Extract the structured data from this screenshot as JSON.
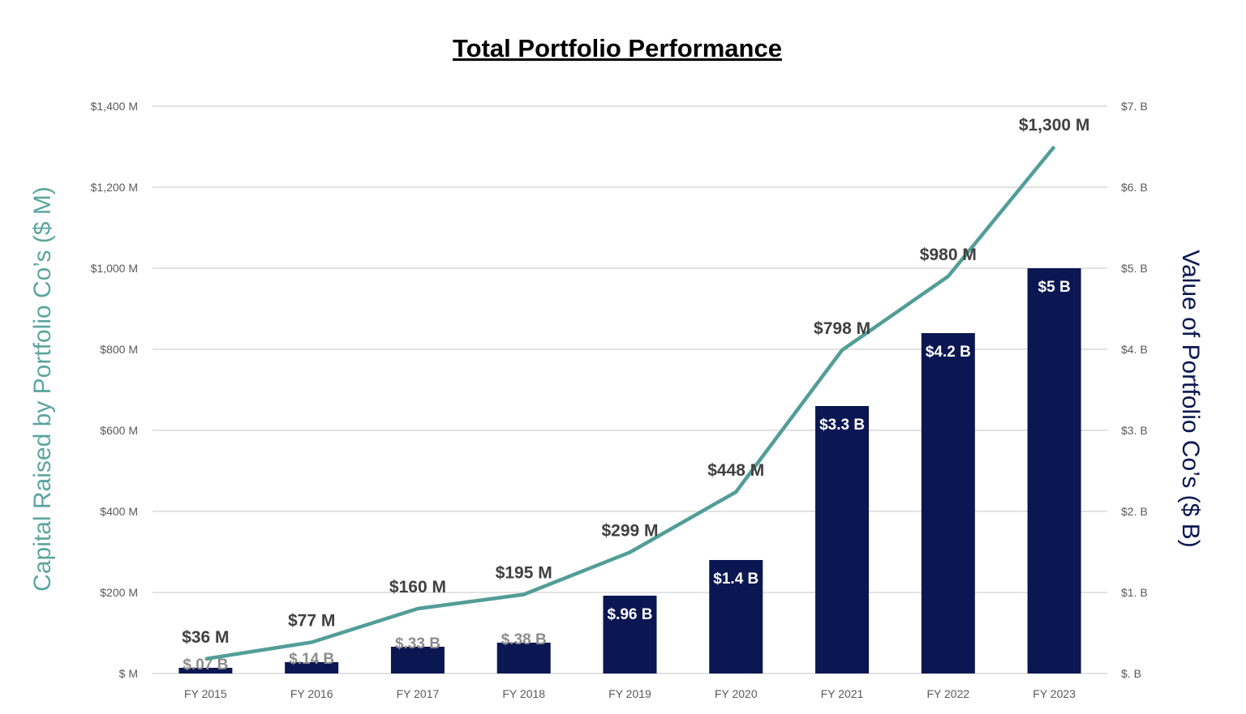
{
  "chart_data": {
    "type": "bar+line",
    "title": "Total Portfolio Performance",
    "categories": [
      "FY 2015",
      "FY 2016",
      "FY 2017",
      "FY 2018",
      "FY 2019",
      "FY 2020",
      "FY 2021",
      "FY 2022",
      "FY 2023"
    ],
    "y_left": {
      "label": "Capital Raised by Portfolio Co’s ($ M)",
      "range": [
        0,
        1400
      ],
      "ticks": [
        0,
        200,
        400,
        600,
        800,
        1000,
        1200,
        1400
      ],
      "tick_labels": [
        "$ M",
        "$200 M",
        "$400 M",
        "$600 M",
        "$800 M",
        "$1,000 M",
        "$1,200 M",
        "$1,400 M"
      ]
    },
    "y_right": {
      "label": "Value of Portfolio Co’s ($ B)",
      "range": [
        0,
        7
      ],
      "ticks": [
        0,
        1,
        2,
        3,
        4,
        5,
        6,
        7
      ],
      "tick_labels": [
        "$. B",
        "$1. B",
        "$2. B",
        "$3. B",
        "$4. B",
        "$5. B",
        "$6. B",
        "$7. B"
      ]
    },
    "grid": true,
    "series": [
      {
        "type": "bar",
        "axis": "right",
        "color": "#0b1752",
        "values": [
          0.07,
          0.14,
          0.33,
          0.38,
          0.96,
          1.4,
          3.3,
          4.2,
          5
        ],
        "data_labels": [
          "$.07 B",
          "$.14 B",
          "$.33 B",
          "$.38 B",
          "$.96 B",
          "$1.4 B",
          "$3.3 B",
          "$4.2 B",
          "$5 B"
        ]
      },
      {
        "type": "line",
        "axis": "left",
        "color": "#529d98",
        "values": [
          36,
          77,
          160,
          195,
          299,
          448,
          798,
          980,
          1300
        ],
        "data_labels": [
          "$36 M",
          "$77 M",
          "$160 M",
          "$195 M",
          "$299 M",
          "$448 M",
          "$798 M",
          "$980 M",
          "$1,300 M"
        ]
      }
    ],
    "colors": {
      "left_axis_label": "#5aa59f",
      "right_axis_label": "#0b1752",
      "tick_text": "#595959",
      "grid": "#d9d9d9",
      "line_label": "#404040",
      "small_bar_label": "#8c8c8c"
    }
  }
}
